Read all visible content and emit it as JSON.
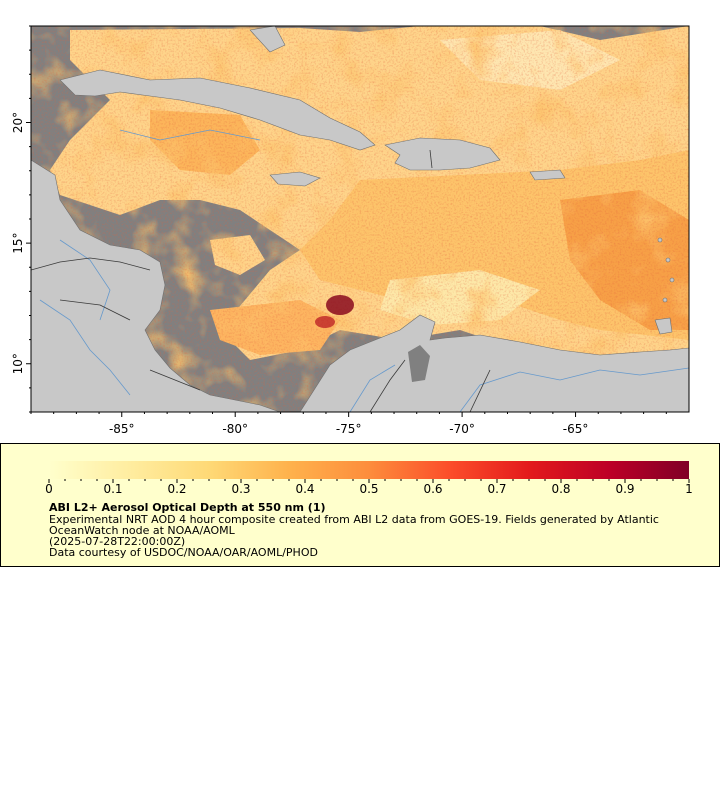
{
  "map": {
    "lon_range": [
      -89,
      -60
    ],
    "lat_range": [
      8,
      24
    ],
    "x_ticks": [
      {
        "value": -85,
        "label": "-85°"
      },
      {
        "value": -80,
        "label": "-80°"
      },
      {
        "value": -75,
        "label": "-75°"
      },
      {
        "value": -70,
        "label": "-70°"
      },
      {
        "value": -65,
        "label": "-65°"
      }
    ],
    "y_ticks": [
      {
        "value": 20,
        "label": "20°"
      },
      {
        "value": 15,
        "label": "15°"
      },
      {
        "value": 10,
        "label": "10°"
      }
    ],
    "colors": {
      "land": "#c8c8c8",
      "no_data": "#808080",
      "rivers": "#6699cc",
      "borders": "#555555"
    }
  },
  "legend": {
    "ticks": [
      "0",
      "0.1",
      "0.2",
      "0.3",
      "0.4",
      "0.5",
      "0.6",
      "0.7",
      "0.8",
      "0.9",
      "1"
    ],
    "colormap": [
      "#ffffcc",
      "#ffeda0",
      "#fed976",
      "#feb24c",
      "#fd8d3c",
      "#fc4e2a",
      "#e31a1c",
      "#bd0026",
      "#800026"
    ],
    "title": "ABI L2+ Aerosol Optical Depth at 550 nm (1)",
    "line1": "Experimental NRT AOD 4 hour composite created from ABI L2 data from GOES-19. Fields generated by Atlantic",
    "line2": "OceanWatch node at NOAA/AOML",
    "line3": "(2025-07-28T22:00:00Z)",
    "line4": "Data courtesy of USDOC/NOAA/OAR/AOML/PHOD"
  }
}
